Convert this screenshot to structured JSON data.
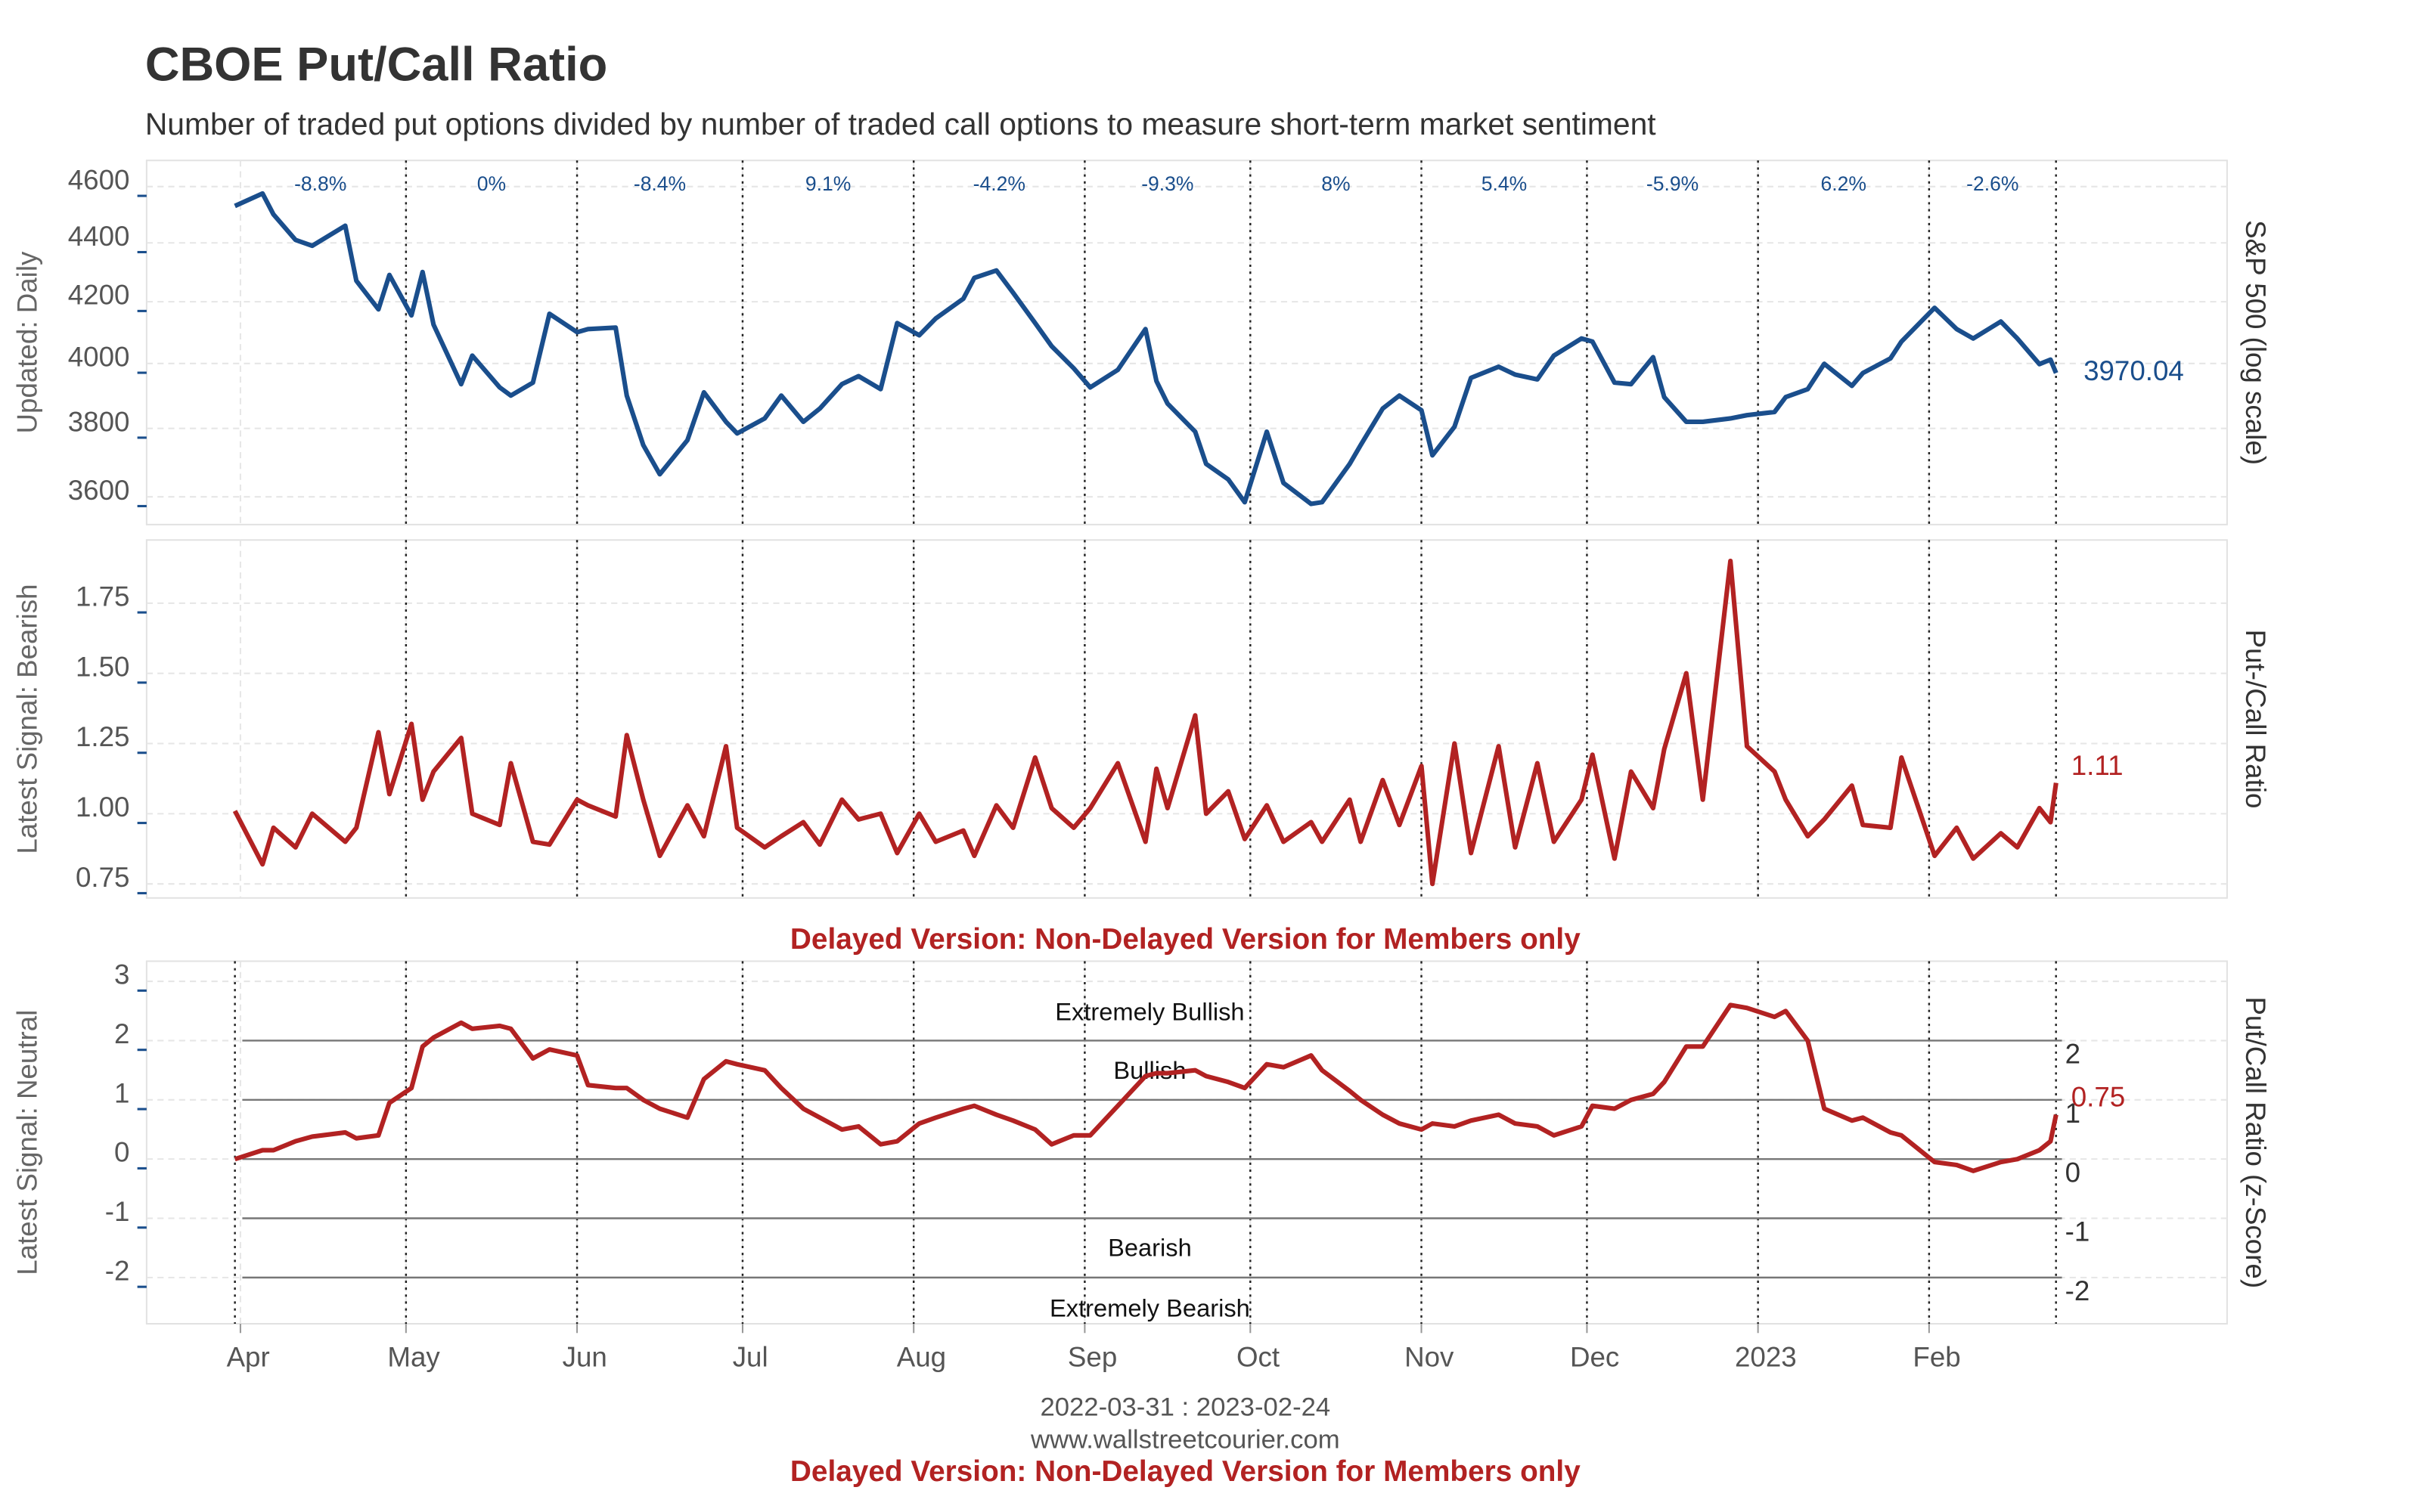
{
  "title": "CBOE Put/Call Ratio",
  "subtitle": "Number of traded put options divided by number of traded call options to measure short-term market sentiment",
  "notice": "Delayed Version: Non-Delayed Version for Members only",
  "footer": {
    "range": "2022-03-31 : 2023-02-24",
    "site": "www.wallstreetcourier.com"
  },
  "chart_data": [
    {
      "type": "line",
      "log_scale": true,
      "grid": true,
      "ylabel": "Updated: Daily",
      "ylabel_right": "S&P 500 (log scale)",
      "xlim": [
        "2022-03-15",
        "2023-03-27"
      ],
      "ylim": [
        3522,
        4696
      ],
      "yticks": [
        3600,
        3800,
        4000,
        4200,
        4400,
        4600
      ],
      "x": [
        "2022-03-31",
        "2022-04-05",
        "2022-04-07",
        "2022-04-11",
        "2022-04-14",
        "2022-04-20",
        "2022-04-22",
        "2022-04-26",
        "2022-04-28",
        "2022-05-02",
        "2022-05-04",
        "2022-05-06",
        "2022-05-11",
        "2022-05-13",
        "2022-05-18",
        "2022-05-20",
        "2022-05-24",
        "2022-05-27",
        "2022-06-01",
        "2022-06-03",
        "2022-06-08",
        "2022-06-10",
        "2022-06-13",
        "2022-06-16",
        "2022-06-21",
        "2022-06-24",
        "2022-06-28",
        "2022-06-30",
        "2022-07-05",
        "2022-07-08",
        "2022-07-12",
        "2022-07-15",
        "2022-07-19",
        "2022-07-22",
        "2022-07-26",
        "2022-07-29",
        "2022-08-02",
        "2022-08-05",
        "2022-08-10",
        "2022-08-12",
        "2022-08-16",
        "2022-08-19",
        "2022-08-23",
        "2022-08-26",
        "2022-08-30",
        "2022-09-02",
        "2022-09-07",
        "2022-09-12",
        "2022-09-14",
        "2022-09-16",
        "2022-09-21",
        "2022-09-23",
        "2022-09-27",
        "2022-09-30",
        "2022-10-04",
        "2022-10-07",
        "2022-10-12",
        "2022-10-14",
        "2022-10-19",
        "2022-10-21",
        "2022-10-25",
        "2022-10-28",
        "2022-11-01",
        "2022-11-03",
        "2022-11-07",
        "2022-11-10",
        "2022-11-15",
        "2022-11-18",
        "2022-11-22",
        "2022-11-25",
        "2022-11-30",
        "2022-12-02",
        "2022-12-06",
        "2022-12-09",
        "2022-12-13",
        "2022-12-15",
        "2022-12-19",
        "2022-12-22",
        "2022-12-27",
        "2022-12-30",
        "2023-01-04",
        "2023-01-06",
        "2023-01-10",
        "2023-01-13",
        "2023-01-18",
        "2023-01-20",
        "2023-01-25",
        "2023-01-27",
        "2023-02-02",
        "2023-02-06",
        "2023-02-09",
        "2023-02-14",
        "2023-02-17",
        "2023-02-21",
        "2023-02-23",
        "2023-02-24"
      ],
      "series": [
        {
          "color": "#1a4e8c",
          "values": [
            4530,
            4575,
            4500,
            4410,
            4390,
            4460,
            4270,
            4175,
            4290,
            4155,
            4300,
            4125,
            3935,
            4025,
            3925,
            3900,
            3940,
            4160,
            4100,
            4110,
            4115,
            3900,
            3750,
            3665,
            3765,
            3910,
            3820,
            3785,
            3830,
            3900,
            3820,
            3860,
            3935,
            3960,
            3920,
            4130,
            4090,
            4145,
            4210,
            4280,
            4305,
            4230,
            4130,
            4055,
            3985,
            3925,
            3980,
            4110,
            3945,
            3875,
            3790,
            3695,
            3650,
            3585,
            3790,
            3640,
            3580,
            3585,
            3695,
            3750,
            3860,
            3900,
            3855,
            3720,
            3805,
            3955,
            3990,
            3965,
            3950,
            4025,
            4080,
            4070,
            3940,
            3935,
            4020,
            3895,
            3820,
            3820,
            3830,
            3840,
            3850,
            3895,
            3920,
            3999,
            3930,
            3970,
            4016,
            4070,
            4180,
            4110,
            4080,
            4135,
            4080,
            3998,
            4012,
            3970.04
          ]
        }
      ],
      "annotations": {
        "bounds": [
          "2022-03-31",
          "2022-05-01",
          "2022-06-01",
          "2022-07-01",
          "2022-08-01",
          "2022-09-01",
          "2022-10-01",
          "2022-11-01",
          "2022-12-01",
          "2023-01-01",
          "2023-02-01",
          "2023-02-24"
        ],
        "values": [
          -8.8,
          0,
          -8.4,
          9.1,
          -4.2,
          -9.3,
          8,
          5.4,
          -5.9,
          6.2,
          -2.6
        ],
        "value_labels": [
          "-8.8%",
          "0%",
          "-8.4%",
          "9.1%",
          "-4.2%",
          "-9.3%",
          "8%",
          "5.4%",
          "-5.9%",
          "6.2%",
          "-2.6%"
        ]
      }
    },
    {
      "type": "line",
      "grid": true,
      "ylabel": "Latest Signal: Bearish",
      "ylabel_right": "Put-/Call Ratio",
      "xlim": [
        "2022-03-15",
        "2023-03-27"
      ],
      "ylim": [
        0.7,
        1.975
      ],
      "yticks": [
        0.75,
        {
          "value": 1,
          "label": "1.00"
        },
        1.25,
        {
          "value": 1.5,
          "label": "1.50"
        },
        1.75
      ],
      "x": [
        "2022-03-31",
        "2022-04-05",
        "2022-04-07",
        "2022-04-11",
        "2022-04-14",
        "2022-04-20",
        "2022-04-22",
        "2022-04-26",
        "2022-04-28",
        "2022-05-02",
        "2022-05-04",
        "2022-05-06",
        "2022-05-11",
        "2022-05-13",
        "2022-05-18",
        "2022-05-20",
        "2022-05-24",
        "2022-05-27",
        "2022-06-01",
        "2022-06-03",
        "2022-06-08",
        "2022-06-10",
        "2022-06-13",
        "2022-06-16",
        "2022-06-21",
        "2022-06-24",
        "2022-06-28",
        "2022-06-30",
        "2022-07-05",
        "2022-07-08",
        "2022-07-12",
        "2022-07-15",
        "2022-07-19",
        "2022-07-22",
        "2022-07-26",
        "2022-07-29",
        "2022-08-02",
        "2022-08-05",
        "2022-08-10",
        "2022-08-12",
        "2022-08-16",
        "2022-08-19",
        "2022-08-23",
        "2022-08-26",
        "2022-08-30",
        "2022-09-02",
        "2022-09-07",
        "2022-09-12",
        "2022-09-14",
        "2022-09-16",
        "2022-09-21",
        "2022-09-23",
        "2022-09-27",
        "2022-09-30",
        "2022-10-04",
        "2022-10-07",
        "2022-10-12",
        "2022-10-14",
        "2022-10-19",
        "2022-10-21",
        "2022-10-25",
        "2022-10-28",
        "2022-11-01",
        "2022-11-03",
        "2022-11-07",
        "2022-11-10",
        "2022-11-15",
        "2022-11-18",
        "2022-11-22",
        "2022-11-25",
        "2022-11-30",
        "2022-12-02",
        "2022-12-06",
        "2022-12-09",
        "2022-12-13",
        "2022-12-15",
        "2022-12-19",
        "2022-12-22",
        "2022-12-27",
        "2022-12-30",
        "2023-01-04",
        "2023-01-06",
        "2023-01-10",
        "2023-01-13",
        "2023-01-18",
        "2023-01-20",
        "2023-01-25",
        "2023-01-27",
        "2023-02-02",
        "2023-02-06",
        "2023-02-09",
        "2023-02-14",
        "2023-02-17",
        "2023-02-21",
        "2023-02-23",
        "2023-02-24"
      ],
      "series": [
        {
          "color": "#b22222",
          "values": [
            1.01,
            0.82,
            0.95,
            0.88,
            1.0,
            0.9,
            0.95,
            1.29,
            1.07,
            1.32,
            1.05,
            1.15,
            1.27,
            1.0,
            0.96,
            1.18,
            0.9,
            0.89,
            1.05,
            1.03,
            0.99,
            1.28,
            1.05,
            0.85,
            1.03,
            0.92,
            1.24,
            0.95,
            0.88,
            0.92,
            0.97,
            0.89,
            1.05,
            0.98,
            1.0,
            0.86,
            1.0,
            0.9,
            0.94,
            0.85,
            1.03,
            0.95,
            1.2,
            1.02,
            0.95,
            1.02,
            1.18,
            0.9,
            1.16,
            1.02,
            1.35,
            1.0,
            1.08,
            0.91,
            1.03,
            0.9,
            0.97,
            0.9,
            1.05,
            0.9,
            1.12,
            0.96,
            1.17,
            0.75,
            1.25,
            0.86,
            1.24,
            0.88,
            1.18,
            0.9,
            1.05,
            1.21,
            0.84,
            1.15,
            1.02,
            1.23,
            1.5,
            1.05,
            1.9,
            1.24,
            1.15,
            1.05,
            0.92,
            0.98,
            1.1,
            0.96,
            0.95,
            1.2,
            0.85,
            0.95,
            0.84,
            0.93,
            0.88,
            1.02,
            0.97,
            1.11
          ]
        }
      ]
    },
    {
      "type": "line",
      "grid": true,
      "ylabel": "Latest Signal: Neutral",
      "ylabel_right": "Put/Call Ratio (z-Score)",
      "xlim": [
        "2022-03-15",
        "2023-03-27"
      ],
      "ylim": [
        -2.78,
        3.34
      ],
      "yticks": [
        -2,
        -1,
        0,
        1,
        2,
        3
      ],
      "xticks": [
        {
          "value": "2022-04-01",
          "label": "Apr"
        },
        {
          "value": "2022-05-01",
          "label": "May"
        },
        {
          "value": "2022-06-01",
          "label": "Jun"
        },
        {
          "value": "2022-07-01",
          "label": "Jul"
        },
        {
          "value": "2022-08-01",
          "label": "Aug"
        },
        {
          "value": "2022-09-01",
          "label": "Sep"
        },
        {
          "value": "2022-10-01",
          "label": "Oct"
        },
        {
          "value": "2022-11-01",
          "label": "Nov"
        },
        {
          "value": "2022-12-01",
          "label": "Dec"
        },
        {
          "value": "2023-01-01",
          "label": "2023"
        },
        {
          "value": "2023-02-01",
          "label": "Feb"
        }
      ],
      "reference_lines": [
        2,
        1,
        0,
        -1,
        -2
      ],
      "zones": [
        "Extremely Bullish",
        "Bullish",
        "Bearish",
        "Extremely Bearish"
      ],
      "x": [
        "2022-03-31",
        "2022-04-05",
        "2022-04-07",
        "2022-04-11",
        "2022-04-14",
        "2022-04-20",
        "2022-04-22",
        "2022-04-26",
        "2022-04-28",
        "2022-05-02",
        "2022-05-04",
        "2022-05-06",
        "2022-05-11",
        "2022-05-13",
        "2022-05-18",
        "2022-05-20",
        "2022-05-24",
        "2022-05-27",
        "2022-06-01",
        "2022-06-03",
        "2022-06-08",
        "2022-06-10",
        "2022-06-13",
        "2022-06-16",
        "2022-06-21",
        "2022-06-24",
        "2022-06-28",
        "2022-06-30",
        "2022-07-05",
        "2022-07-08",
        "2022-07-12",
        "2022-07-15",
        "2022-07-19",
        "2022-07-22",
        "2022-07-26",
        "2022-07-29",
        "2022-08-02",
        "2022-08-05",
        "2022-08-10",
        "2022-08-12",
        "2022-08-16",
        "2022-08-19",
        "2022-08-23",
        "2022-08-26",
        "2022-08-30",
        "2022-09-02",
        "2022-09-07",
        "2022-09-12",
        "2022-09-14",
        "2022-09-16",
        "2022-09-21",
        "2022-09-23",
        "2022-09-27",
        "2022-09-30",
        "2022-10-04",
        "2022-10-07",
        "2022-10-12",
        "2022-10-14",
        "2022-10-19",
        "2022-10-21",
        "2022-10-25",
        "2022-10-28",
        "2022-11-01",
        "2022-11-03",
        "2022-11-07",
        "2022-11-10",
        "2022-11-15",
        "2022-11-18",
        "2022-11-22",
        "2022-11-25",
        "2022-11-30",
        "2022-12-02",
        "2022-12-06",
        "2022-12-09",
        "2022-12-13",
        "2022-12-15",
        "2022-12-19",
        "2022-12-22",
        "2022-12-27",
        "2022-12-30",
        "2023-01-04",
        "2023-01-06",
        "2023-01-10",
        "2023-01-13",
        "2023-01-18",
        "2023-01-20",
        "2023-01-25",
        "2023-01-27",
        "2023-02-02",
        "2023-02-06",
        "2023-02-09",
        "2023-02-14",
        "2023-02-17",
        "2023-02-21",
        "2023-02-23",
        "2023-02-24"
      ],
      "series": [
        {
          "color": "#b22222",
          "values": [
            0.0,
            0.15,
            0.15,
            0.3,
            0.38,
            0.45,
            0.35,
            0.4,
            0.95,
            1.2,
            1.9,
            2.05,
            2.3,
            2.2,
            2.25,
            2.2,
            1.7,
            1.85,
            1.75,
            1.25,
            1.2,
            1.2,
            1.0,
            0.85,
            0.7,
            1.35,
            1.65,
            1.6,
            1.5,
            1.2,
            0.85,
            0.7,
            0.5,
            0.55,
            0.25,
            0.3,
            0.6,
            0.7,
            0.85,
            0.9,
            0.75,
            0.65,
            0.5,
            0.25,
            0.4,
            0.4,
            0.9,
            1.4,
            1.45,
            1.45,
            1.5,
            1.4,
            1.3,
            1.2,
            1.6,
            1.55,
            1.75,
            1.5,
            1.15,
            1.0,
            0.75,
            0.6,
            0.5,
            0.6,
            0.55,
            0.65,
            0.75,
            0.6,
            0.55,
            0.4,
            0.55,
            0.9,
            0.85,
            1.0,
            1.1,
            1.3,
            1.9,
            1.9,
            2.6,
            2.55,
            2.4,
            2.5,
            2.0,
            0.85,
            0.65,
            0.7,
            0.45,
            0.4,
            -0.05,
            -0.1,
            -0.2,
            -0.05,
            0.0,
            0.15,
            0.3,
            0.75
          ]
        }
      ]
    }
  ]
}
